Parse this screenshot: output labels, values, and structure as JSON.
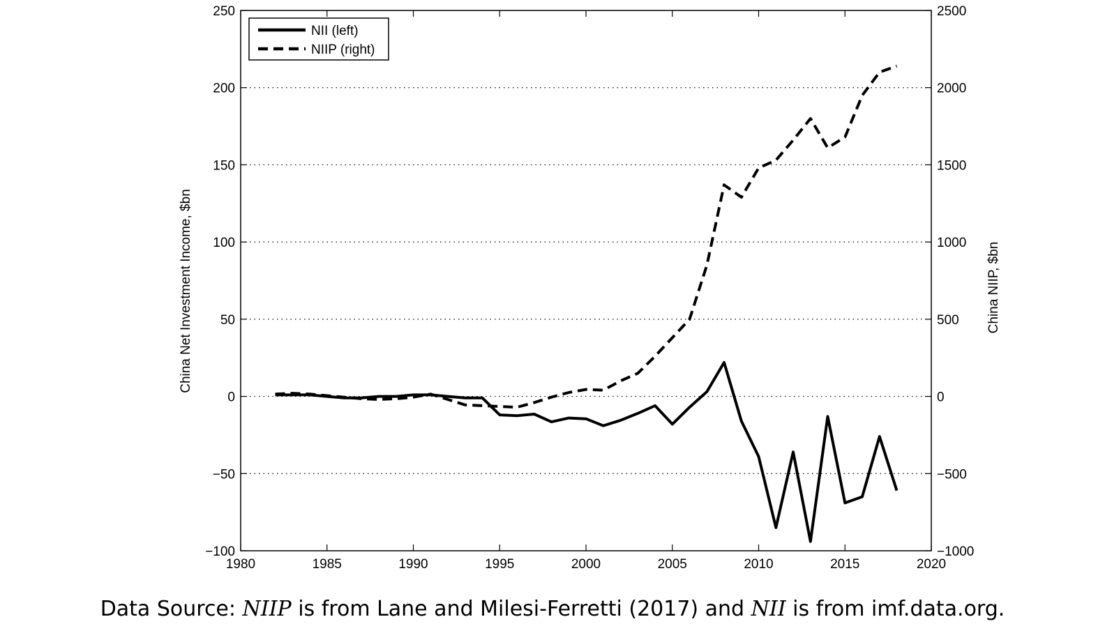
{
  "chart_data": {
    "type": "line",
    "xlim": [
      1980,
      2020
    ],
    "xticks": [
      1980,
      1985,
      1990,
      1995,
      2000,
      2005,
      2010,
      2015,
      2020
    ],
    "left_axis": {
      "label": "China Net Investment Income, $bn",
      "ylim": [
        -100,
        250
      ],
      "ticks": [
        -100,
        -50,
        0,
        50,
        100,
        150,
        200,
        250
      ]
    },
    "right_axis": {
      "label": "China NIIP, $bn",
      "ylim": [
        -1000,
        2500
      ],
      "ticks": [
        -1000,
        -500,
        0,
        500,
        1000,
        1500,
        2000,
        2500
      ]
    },
    "grid": "horizontal dotted",
    "legend_position": "top-left",
    "series": [
      {
        "name": "NII (left)",
        "axis": "left",
        "style": "solid",
        "color": "#000000",
        "x": [
          1982,
          1983,
          1984,
          1985,
          1986,
          1987,
          1988,
          1989,
          1990,
          1991,
          1992,
          1993,
          1994,
          1995,
          1996,
          1997,
          1998,
          1999,
          2000,
          2001,
          2002,
          2003,
          2004,
          2005,
          2006,
          2007,
          2008,
          2009,
          2010,
          2011,
          2012,
          2013,
          2014,
          2015,
          2016,
          2017,
          2018
        ],
        "values": [
          1,
          1,
          1,
          0,
          -1,
          -1,
          0,
          0,
          1,
          1,
          0,
          -1,
          -1,
          -12,
          -12.5,
          -11.5,
          -16.5,
          -14,
          -14.5,
          -19,
          -15.5,
          -11,
          -6,
          -18,
          -7,
          3,
          22,
          -16,
          -39,
          -85,
          -36,
          -94,
          -13,
          -69,
          -65,
          -26,
          -61
        ]
      },
      {
        "name": "NIIP (right)",
        "axis": "right",
        "style": "dashed",
        "color": "#000000",
        "x": [
          1982,
          1983,
          1984,
          1985,
          1986,
          1987,
          1988,
          1989,
          1990,
          1991,
          1992,
          1993,
          1994,
          1995,
          1996,
          1997,
          1998,
          1999,
          2000,
          2001,
          2002,
          2003,
          2004,
          2005,
          2006,
          2007,
          2008,
          2009,
          2010,
          2011,
          2012,
          2013,
          2014,
          2015,
          2016,
          2017,
          2018
        ],
        "values": [
          15,
          20,
          15,
          5,
          -5,
          -15,
          -20,
          -15,
          -5,
          15,
          -20,
          -55,
          -60,
          -65,
          -70,
          -40,
          -5,
          25,
          45,
          40,
          100,
          150,
          260,
          380,
          500,
          850,
          1370,
          1290,
          1480,
          1530,
          1660,
          1800,
          1610,
          1680,
          1950,
          2100,
          2140
        ]
      }
    ]
  },
  "source_note": {
    "prefix": "Data Source: ",
    "niip": "NIIP",
    "mid": " is from Lane and Milesi-Ferretti (2017) and ",
    "nii": "NII",
    "suffix": " is from imf.data.org."
  }
}
